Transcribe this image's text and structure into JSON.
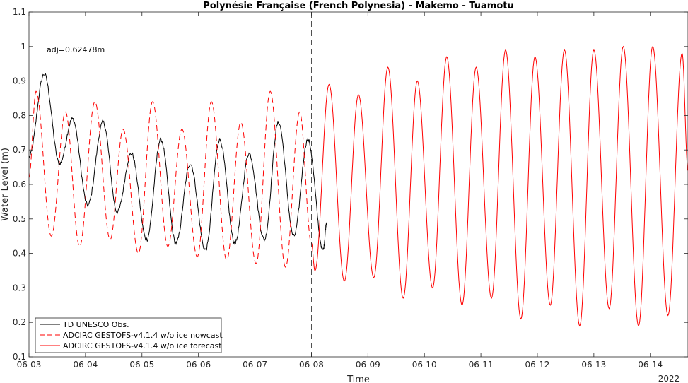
{
  "chart_data": {
    "type": "line",
    "title": "Polynésie Française (French Polynesia) - Makemo - Tuamotu",
    "xlabel": "Time",
    "ylabel": "Water Level (m)",
    "year_label": "2022",
    "annotation": "adj=0.62478m",
    "xlim": [
      "2022-06-03 00:00",
      "2022-06-14 16:00"
    ],
    "ylim": [
      0.1,
      1.1
    ],
    "x_ticks": [
      "06-03",
      "06-04",
      "06-05",
      "06-06",
      "06-07",
      "06-08",
      "06-09",
      "06-10",
      "06-11",
      "06-12",
      "06-13",
      "06-14"
    ],
    "y_ticks": [
      "0.1",
      "0.2",
      "0.3",
      "0.4",
      "0.5",
      "0.6",
      "0.7",
      "0.8",
      "0.9",
      "1",
      "1.1"
    ],
    "y_tick_values": [
      0.1,
      0.2,
      0.3,
      0.4,
      0.5,
      0.6,
      0.7,
      0.8,
      0.9,
      1.0,
      1.1
    ],
    "forecast_start_marker": "2022-06-08 00:00",
    "grid": false,
    "legend_position": "bottom-left",
    "series": [
      {
        "name": "TD UNESCO Obs.",
        "color": "#000000",
        "style": "solid",
        "extrema": [
          [
            "2022-06-03 00:00",
            0.68
          ],
          [
            "2022-06-03 06:30",
            0.92
          ],
          [
            "2022-06-03 13:00",
            0.66
          ],
          [
            "2022-06-03 18:30",
            0.79
          ],
          [
            "2022-06-04 01:00",
            0.54
          ],
          [
            "2022-06-04 07:30",
            0.78
          ],
          [
            "2022-06-04 13:30",
            0.52
          ],
          [
            "2022-06-04 19:30",
            0.69
          ],
          [
            "2022-06-05 02:00",
            0.44
          ],
          [
            "2022-06-05 08:00",
            0.73
          ],
          [
            "2022-06-05 14:30",
            0.43
          ],
          [
            "2022-06-05 20:30",
            0.66
          ],
          [
            "2022-06-06 03:00",
            0.41
          ],
          [
            "2022-06-06 09:00",
            0.73
          ],
          [
            "2022-06-06 15:30",
            0.43
          ],
          [
            "2022-06-06 21:30",
            0.69
          ],
          [
            "2022-06-07 04:00",
            0.44
          ],
          [
            "2022-06-07 10:00",
            0.78
          ],
          [
            "2022-06-07 16:30",
            0.45
          ],
          [
            "2022-06-07 22:30",
            0.73
          ],
          [
            "2022-06-08 05:00",
            0.41
          ],
          [
            "2022-06-08 06:30",
            0.49
          ]
        ]
      },
      {
        "name": "ADCIRC GESTOFS-v4.1.4 w/o ice nowcast",
        "color": "#ff0000",
        "style": "dashed",
        "extrema": [
          [
            "2022-06-03 00:00",
            0.62
          ],
          [
            "2022-06-03 03:00",
            0.87
          ],
          [
            "2022-06-03 09:30",
            0.45
          ],
          [
            "2022-06-03 15:30",
            0.81
          ],
          [
            "2022-06-03 21:30",
            0.42
          ],
          [
            "2022-06-04 04:00",
            0.84
          ],
          [
            "2022-06-04 10:30",
            0.44
          ],
          [
            "2022-06-04 16:00",
            0.76
          ],
          [
            "2022-06-04 22:30",
            0.4
          ],
          [
            "2022-06-05 04:30",
            0.84
          ],
          [
            "2022-06-05 11:00",
            0.42
          ],
          [
            "2022-06-05 17:00",
            0.76
          ],
          [
            "2022-06-05 23:30",
            0.39
          ],
          [
            "2022-06-06 05:30",
            0.84
          ],
          [
            "2022-06-06 12:00",
            0.38
          ],
          [
            "2022-06-06 18:00",
            0.78
          ],
          [
            "2022-06-07 00:30",
            0.37
          ],
          [
            "2022-06-07 06:30",
            0.87
          ],
          [
            "2022-06-07 13:00",
            0.36
          ],
          [
            "2022-06-07 19:00",
            0.81
          ],
          [
            "2022-06-08 00:00",
            0.43
          ]
        ]
      },
      {
        "name": "ADCIRC GESTOFS-v4.1.4 w/o ice forecast",
        "color": "#ff0000",
        "style": "solid",
        "extrema": [
          [
            "2022-06-08 00:00",
            0.43
          ],
          [
            "2022-06-08 01:30",
            0.35
          ],
          [
            "2022-06-08 07:30",
            0.89
          ],
          [
            "2022-06-08 14:00",
            0.32
          ],
          [
            "2022-06-08 20:00",
            0.86
          ],
          [
            "2022-06-09 02:30",
            0.33
          ],
          [
            "2022-06-09 08:30",
            0.94
          ],
          [
            "2022-06-09 15:00",
            0.27
          ],
          [
            "2022-06-09 21:00",
            0.9
          ],
          [
            "2022-06-10 03:30",
            0.3
          ],
          [
            "2022-06-10 09:30",
            0.97
          ],
          [
            "2022-06-10 16:00",
            0.25
          ],
          [
            "2022-06-10 22:00",
            0.94
          ],
          [
            "2022-06-11 04:30",
            0.27
          ],
          [
            "2022-06-11 10:30",
            0.99
          ],
          [
            "2022-06-11 17:00",
            0.21
          ],
          [
            "2022-06-11 23:00",
            0.97
          ],
          [
            "2022-06-12 05:30",
            0.25
          ],
          [
            "2022-06-12 11:30",
            0.99
          ],
          [
            "2022-06-12 18:00",
            0.19
          ],
          [
            "2022-06-13 00:00",
            0.99
          ],
          [
            "2022-06-13 06:30",
            0.24
          ],
          [
            "2022-06-13 12:30",
            1.0
          ],
          [
            "2022-06-13 19:00",
            0.19
          ],
          [
            "2022-06-14 01:00",
            1.0
          ],
          [
            "2022-06-14 07:30",
            0.22
          ],
          [
            "2022-06-14 13:30",
            0.98
          ],
          [
            "2022-06-14 16:00",
            0.64
          ]
        ]
      }
    ]
  }
}
